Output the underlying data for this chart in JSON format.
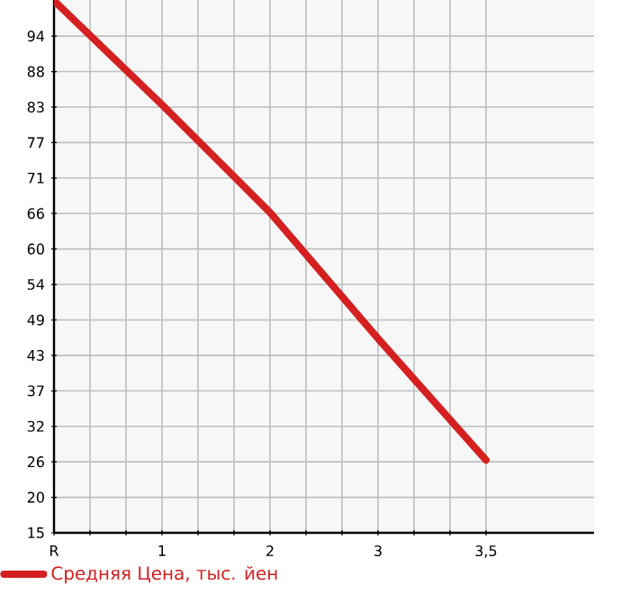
{
  "chart_data": {
    "type": "line",
    "categories": [
      "R",
      "1",
      "2",
      "3",
      "3,5",
      null
    ],
    "series": [
      {
        "name": "Средняя Цена, тыс. йен",
        "color": "#d42020",
        "values": [
          99.5,
          82.9,
          65.7,
          45.6,
          26.2,
          null
        ]
      }
    ],
    "ylim": [
      14.6,
      99.6
    ],
    "yticks": [
      {
        "value": 14.6,
        "label": "15"
      },
      {
        "value": 20.26,
        "label": "20"
      },
      {
        "value": 25.92,
        "label": "26"
      },
      {
        "value": 31.58,
        "label": "32"
      },
      {
        "value": 37.24,
        "label": "37"
      },
      {
        "value": 42.9,
        "label": "43"
      },
      {
        "value": 48.56,
        "label": "49"
      },
      {
        "value": 54.22,
        "label": "54"
      },
      {
        "value": 59.88,
        "label": "60"
      },
      {
        "value": 65.54,
        "label": "66"
      },
      {
        "value": 71.2,
        "label": "71"
      },
      {
        "value": 76.86,
        "label": "77"
      },
      {
        "value": 82.52,
        "label": "83"
      },
      {
        "value": 88.18,
        "label": "88"
      },
      {
        "value": 93.84,
        "label": "94"
      }
    ],
    "grid": true,
    "legend": "bottom left",
    "marker": "none",
    "line_style": "solid"
  }
}
